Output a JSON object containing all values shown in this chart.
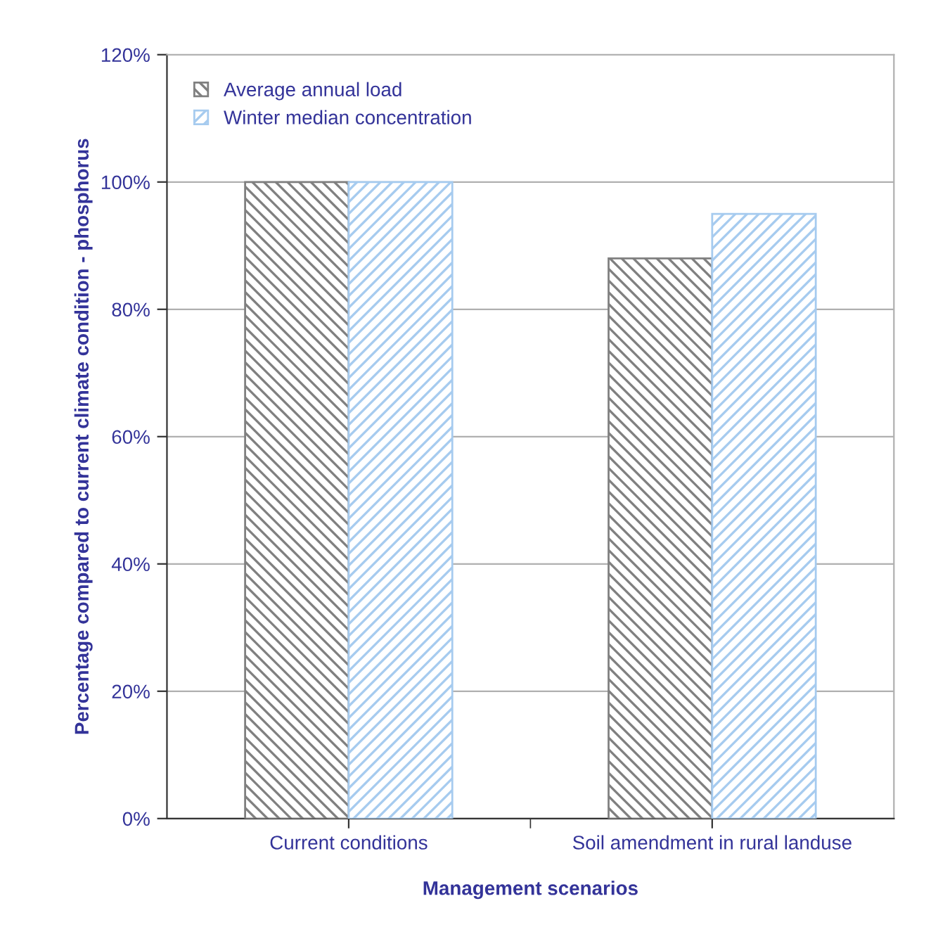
{
  "chart_data": {
    "type": "bar",
    "xlabel": "Management scenarios",
    "ylabel": "Percentage compared to current climate condition - phosphorus",
    "categories": [
      "Current conditions",
      "Soil amendment in rural landuse"
    ],
    "series": [
      {
        "name": "Average annual load",
        "color": "#808080",
        "values": [
          100,
          88
        ]
      },
      {
        "name": "Winter median concentration",
        "color": "#a6cbef",
        "values": [
          100,
          95
        ]
      }
    ],
    "ylim": [
      0,
      120
    ],
    "yticks": [
      {
        "value": 0,
        "label": "0%"
      },
      {
        "value": 20,
        "label": "20%"
      },
      {
        "value": 40,
        "label": "40%"
      },
      {
        "value": 60,
        "label": "60%"
      },
      {
        "value": 80,
        "label": "80%"
      },
      {
        "value": 100,
        "label": "100%"
      },
      {
        "value": 120,
        "label": "120%"
      }
    ],
    "grid": "y",
    "legend": "top left"
  }
}
